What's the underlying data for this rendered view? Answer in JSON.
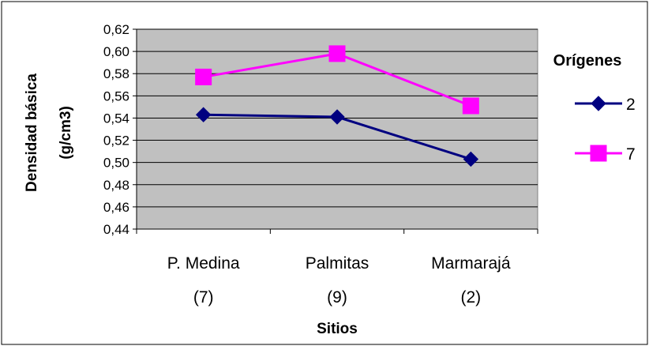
{
  "chart_data": {
    "type": "line",
    "categories": [
      [
        "P. Medina",
        "(7)"
      ],
      [
        "Palmitas",
        "(9)"
      ],
      [
        "Marmarajá",
        "(2)"
      ]
    ],
    "series": [
      {
        "name": "2",
        "values": [
          0.543,
          0.541,
          0.503
        ],
        "color": "#000080",
        "marker": "diamond"
      },
      {
        "name": "7",
        "values": [
          0.577,
          0.598,
          0.551
        ],
        "color": "#ff00ff",
        "marker": "square"
      }
    ],
    "ylim": [
      0.44,
      0.62
    ],
    "yticks": [
      "0,44",
      "0,46",
      "0,48",
      "0,50",
      "0,52",
      "0,54",
      "0,56",
      "0,58",
      "0,60",
      "0,62"
    ],
    "xlabel": "Sitios",
    "ylabel_line1": "Densidad básica",
    "ylabel_line2": "(g/cm3)",
    "legend_title": "Orígenes",
    "legend_position": "right",
    "grid": true,
    "plot_background": "#c0c0c0"
  }
}
